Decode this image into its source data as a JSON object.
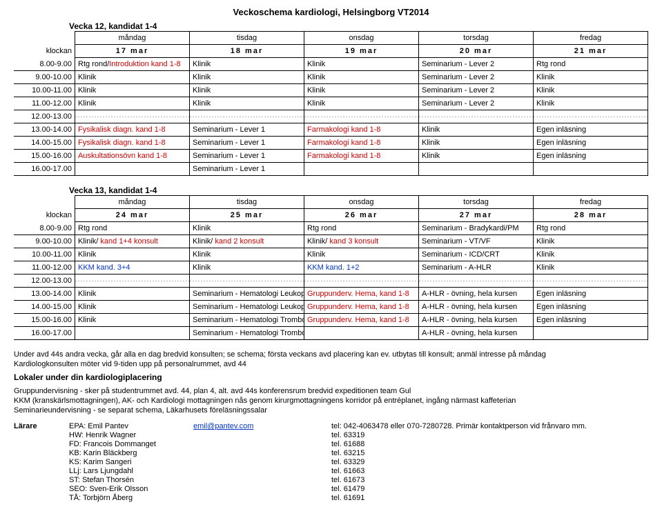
{
  "page_title": "Veckoschema kardiologi, Helsingborg VT2014",
  "weeks": [
    {
      "title": "Vecka 12, kandidat 1-4",
      "day_labels": [
        "måndag",
        "tisdag",
        "onsdag",
        "torsdag",
        "fredag"
      ],
      "dates": [
        "17 mar",
        "18 mar",
        "19 mar",
        "20 mar",
        "21 mar"
      ],
      "header_time": "klockan",
      "rows": [
        {
          "time": "8.00-9.00",
          "cells": [
            {
              "t": "Rtg rond/",
              "r": "Introduktion kand 1-8"
            },
            {
              "t": "Klinik"
            },
            {
              "t": "Klinik"
            },
            {
              "t": "Seminarium - Lever 2"
            },
            {
              "t": "Rtg rond"
            }
          ]
        },
        {
          "time": "9.00-10.00",
          "cells": [
            {
              "t": "Klinik"
            },
            {
              "t": "Klinik"
            },
            {
              "t": "Klinik"
            },
            {
              "t": "Seminarium - Lever 2"
            },
            {
              "t": "Klinik"
            }
          ]
        },
        {
          "time": "10.00-11.00",
          "cells": [
            {
              "t": "Klinik"
            },
            {
              "t": "Klinik"
            },
            {
              "t": "Klinik"
            },
            {
              "t": "Seminarium - Lever 2"
            },
            {
              "t": "Klinik"
            }
          ]
        },
        {
          "time": "11.00-12.00",
          "cells": [
            {
              "t": "Klinik"
            },
            {
              "t": "Klinik"
            },
            {
              "t": "Klinik"
            },
            {
              "t": "Seminarium - Lever 2"
            },
            {
              "t": "Klinik"
            }
          ]
        },
        {
          "time": "12.00-13.00",
          "dotted": true,
          "cells": [
            {
              "t": ""
            },
            {
              "t": ""
            },
            {
              "t": ""
            },
            {
              "t": ""
            },
            {
              "t": ""
            }
          ]
        },
        {
          "time": "13.00-14.00",
          "cells": [
            {
              "r": "Fysikalisk diagn. kand 1-8"
            },
            {
              "t": "Seminarium - Lever 1"
            },
            {
              "r": "Farmakologi kand 1-8"
            },
            {
              "t": "Klinik"
            },
            {
              "t": "Egen inläsning"
            }
          ]
        },
        {
          "time": "14.00-15.00",
          "cells": [
            {
              "r": "Fysikalisk diagn. kand 1-8"
            },
            {
              "t": "Seminarium - Lever 1"
            },
            {
              "r": "Farmakologi kand 1-8"
            },
            {
              "t": "Klinik"
            },
            {
              "t": "Egen inläsning"
            }
          ]
        },
        {
          "time": "15.00-16.00",
          "cells": [
            {
              "r": "Auskultationsövn kand 1-8"
            },
            {
              "t": "Seminarium - Lever 1"
            },
            {
              "r": "Farmakologi kand 1-8"
            },
            {
              "t": "Klinik"
            },
            {
              "t": "Egen inläsning"
            }
          ]
        },
        {
          "time": "16.00-17.00",
          "cells": [
            {
              "t": ""
            },
            {
              "t": "Seminarium - Lever 1"
            },
            {
              "t": ""
            },
            {
              "t": ""
            },
            {
              "t": ""
            }
          ]
        }
      ]
    },
    {
      "title": "Vecka 13, kandidat 1-4",
      "day_labels": [
        "måndag",
        "tisdag",
        "onsdag",
        "torsdag",
        "fredag"
      ],
      "dates": [
        "24 mar",
        "25 mar",
        "26 mar",
        "27 mar",
        "28 mar"
      ],
      "header_time": "klockan",
      "rows": [
        {
          "time": "8.00-9.00",
          "cells": [
            {
              "t": "Rtg rond"
            },
            {
              "t": "Klinik"
            },
            {
              "t": "Rtg rond"
            },
            {
              "t": "Seminarium - Bradykardi/PM"
            },
            {
              "t": "Rtg rond"
            }
          ]
        },
        {
          "time": "9.00-10.00",
          "cells": [
            {
              "t": "Klinik/ ",
              "r": "kand 1+4 konsult"
            },
            {
              "t": "Klinik/ ",
              "r": "kand 2 konsult"
            },
            {
              "t": "Klinik/ ",
              "r": "kand 3 konsult"
            },
            {
              "t": "Seminarium - VT/VF"
            },
            {
              "t": "Klinik"
            }
          ]
        },
        {
          "time": "10.00-11.00",
          "cells": [
            {
              "t": "Klinik"
            },
            {
              "t": "Klinik"
            },
            {
              "t": "Klinik"
            },
            {
              "t": "Seminarium - ICD/CRT"
            },
            {
              "t": "Klinik"
            }
          ]
        },
        {
          "time": "11.00-12.00",
          "cells": [
            {
              "b": "KKM kand. 3+4"
            },
            {
              "t": "Klinik"
            },
            {
              "b": "KKM kand. 1+2"
            },
            {
              "t": "Seminarium - A-HLR"
            },
            {
              "t": "Klinik"
            }
          ]
        },
        {
          "time": "12.00-13.00",
          "dotted": true,
          "cells": [
            {
              "t": ""
            },
            {
              "t": ""
            },
            {
              "t": ""
            },
            {
              "t": ""
            },
            {
              "t": ""
            }
          ]
        },
        {
          "time": "13.00-14.00",
          "cells": [
            {
              "t": "Klinik"
            },
            {
              "t": "Seminarium - Hematologi Leukoper"
            },
            {
              "r": "Gruppunderv. Hema, kand 1-8"
            },
            {
              "t": "A-HLR - övning, hela kursen"
            },
            {
              "t": "Egen inläsning"
            }
          ]
        },
        {
          "time": "14.00-15.00",
          "cells": [
            {
              "t": "Klinik"
            },
            {
              "t": "Seminarium - Hematologi Leukoper"
            },
            {
              "r": "Gruppunderv. Hema, kand 1-8"
            },
            {
              "t": "A-HLR - övning, hela kursen"
            },
            {
              "t": "Egen inläsning"
            }
          ]
        },
        {
          "time": "15.00-16.00",
          "cells": [
            {
              "t": "Klinik"
            },
            {
              "t": "Seminarium - Hematologi Trombocy"
            },
            {
              "r": "Gruppunderv. Hema, kand 1-8"
            },
            {
              "t": "A-HLR - övning, hela kursen"
            },
            {
              "t": "Egen inläsning"
            }
          ]
        },
        {
          "time": "16.00-17.00",
          "cells": [
            {
              "t": ""
            },
            {
              "t": "Seminarium - Hematologi Trombocytopeni"
            },
            {
              "t": ""
            },
            {
              "t": "A-HLR - övning, hela kursen"
            },
            {
              "t": ""
            }
          ]
        }
      ]
    }
  ],
  "notes": [
    "Under avd 44s andra vecka, går alla en dag bredvid konsulten; se schema; första veckans avd placering kan ev. utbytas till konsult; anmäl intresse på måndag",
    "Kardiologkonsulten möter vid 9-tiden upp på personalrummet, avd 44"
  ],
  "section_heading": "Lokaler under din kardiologiplacering",
  "section_lines": [
    "Gruppundervisning - sker på studentrummet avd. 44, plan 4, alt. avd 44s konferensrum bredvid expeditionen team Gul",
    "KKM (kranskärlsmottagningen), AK- och Kardiologi mottagningen nås genom kirurgmottagningens korridor på entréplanet, ingång närmast kaffeterian",
    "Seminarieundervisning - se separat schema, Läkarhusets föreläsningssalar"
  ],
  "teachers_label": "Lärare",
  "teachers": [
    {
      "code": "EPA:",
      "name": "Emil Pantev",
      "email": "emil@pantev.com",
      "tel": "tel: 042-4063478 eller 070-7280728. Primär kontaktperson vid frånvaro mm."
    },
    {
      "code": "HW:",
      "name": "Henrik Wagner",
      "tel": "tel. 63319"
    },
    {
      "code": "FD:",
      "name": "Francois Dommanget",
      "tel": "tel. 61688"
    },
    {
      "code": "KB:",
      "name": "Karin Bläckberg",
      "tel": "tel. 63215"
    },
    {
      "code": "KS:",
      "name": "Karim Sangeri",
      "tel": "tel. 63329"
    },
    {
      "code": "LLj:",
      "name": "Lars Ljungdahl",
      "tel": "tel. 61663"
    },
    {
      "code": "ST:",
      "name": "Stefan Thorsén",
      "tel": "tel. 61673"
    },
    {
      "code": "SEO:",
      "name": "Sven-Erik Olsson",
      "tel": "tel. 61479"
    },
    {
      "code": "TÅ:",
      "name": "Torbjörn Åberg",
      "tel": "tel. 61691"
    }
  ]
}
